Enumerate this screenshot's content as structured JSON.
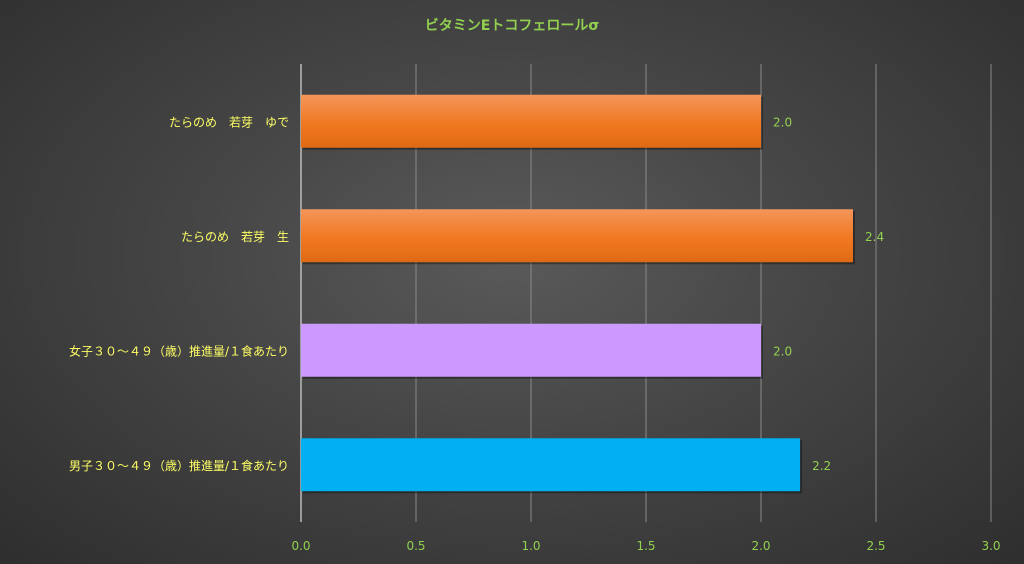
{
  "chart_data": {
    "type": "bar",
    "orientation": "horizontal",
    "title": "ビタミンEトコフェロールσ",
    "xlabel": "",
    "ylabel": "",
    "categories": [
      "たらのめ　若芽　ゆで",
      "たらのめ　若芽　生",
      "女子３０～４９（歳）推進量/１食あたり",
      "男子３０～４９（歳）推進量/１食あたり"
    ],
    "values": [
      2.0,
      2.4,
      2.0,
      2.17
    ],
    "data_labels": [
      "2.0",
      "2.4",
      "2.0",
      "2.2"
    ],
    "bar_colors": [
      "#f07820",
      "#f07820",
      "#cc99ff",
      "#00b0f0"
    ],
    "xlim": [
      0,
      3.0
    ],
    "xticks": [
      0.0,
      0.5,
      1.0,
      1.5,
      2.0,
      2.5,
      3.0
    ],
    "xtick_labels": [
      "0.0",
      "0.5",
      "1.0",
      "1.5",
      "2.0",
      "2.5",
      "3.0"
    ],
    "grid": true,
    "legend": "none",
    "colors": {
      "title": "#92d050",
      "tick_label": "#92d050",
      "category_label": "#ffff66",
      "data_label": "#92d050",
      "gridline": "#8a8a8a"
    }
  }
}
